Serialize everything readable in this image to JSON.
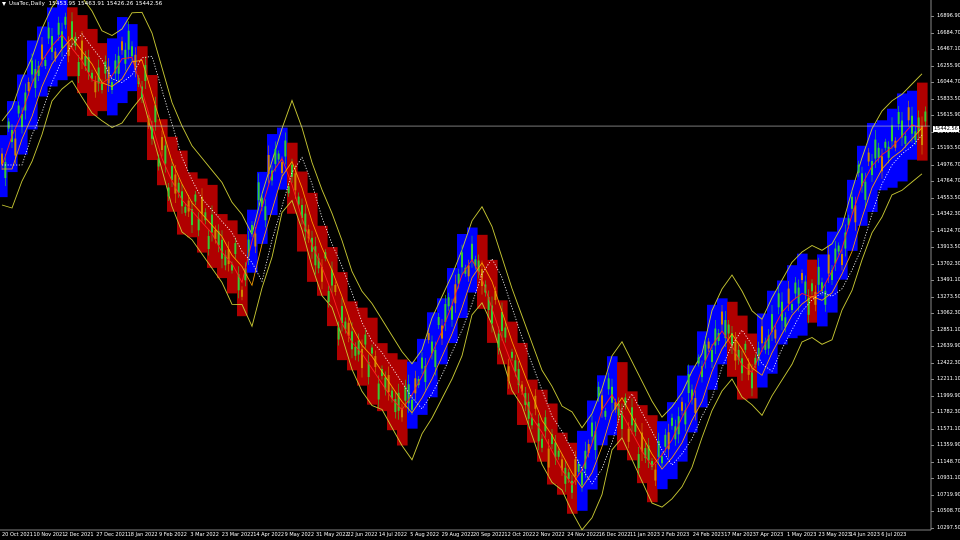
{
  "title": {
    "symbol": "UsaTec,Daily",
    "ohlc": "15453.95 15463.91 15426.26 15442.56"
  },
  "current_price_label": "15442.56",
  "price_axis": {
    "labels": [
      "16896.90",
      "16684.70",
      "16467.10",
      "16255.90",
      "16044.70",
      "15833.50",
      "15615.90",
      "15404.70",
      "15193.50",
      "14976.70",
      "14764.70",
      "14553.50",
      "14342.30",
      "14124.70",
      "13913.50",
      "13702.30",
      "13491.10",
      "13273.50",
      "13062.30",
      "12851.10",
      "12639.90",
      "12422.30",
      "12211.10",
      "11999.90",
      "11782.30",
      "11571.10",
      "11359.90",
      "11148.70",
      "10931.10",
      "10719.90",
      "10508.70",
      "10297.50"
    ]
  },
  "time_axis": {
    "labels": [
      "20 Oct 2021",
      "10 Nov 2021",
      "2 Dec 2021",
      "27 Dec 2021",
      "18 Jan 2022",
      "9 Feb 2022",
      "3 Mar 2022",
      "23 Mar 2022",
      "14 Apr 2022",
      "9 May 2022",
      "31 May 2022",
      "22 Jun 2022",
      "14 Jul 2022",
      "5 Aug 2022",
      "29 Aug 2022",
      "20 Sep 2022",
      "12 Oct 2022",
      "2 Nov 2022",
      "24 Nov 2022",
      "16 Dec 2022",
      "11 Jan 2023",
      "2 Feb 2023",
      "24 Feb 2023",
      "17 Mar 2023",
      "7 Apr 2023",
      "1 May 2023",
      "23 May 2023",
      "14 Jun 2023",
      "6 Jul 2023"
    ]
  },
  "chart_data": {
    "type": "line",
    "ylim": [
      10297.5,
      16896.9
    ],
    "current_price": 15442.56,
    "series": [
      {
        "values": [
          14950,
          15350,
          15650,
          16050,
          16350,
          16550,
          16700,
          16520,
          16350,
          16100,
          16050,
          16150,
          16380,
          16400,
          15950,
          15500,
          15050,
          14750,
          14500,
          14350,
          14200,
          14050,
          13800,
          13650,
          13400,
          13950,
          14400,
          14850,
          15050,
          14700,
          14250,
          13900,
          13600,
          13250,
          12850,
          12600,
          12450,
          12250,
          12050,
          11850,
          11700,
          11900,
          12150,
          12450,
          12750,
          13100,
          13500,
          13700,
          13450,
          13050,
          12650,
          12300,
          11950,
          11600,
          11400,
          11150,
          10900,
          10700,
          10900,
          11250,
          11700,
          11900,
          11650,
          11400,
          11150,
          10950,
          11100,
          11300,
          11600,
          11850,
          12250,
          12550,
          12750,
          12550,
          12300,
          12200,
          12500,
          12750,
          13000,
          13150,
          13250,
          13200,
          13300,
          13550,
          13850,
          14300,
          14700,
          14950,
          15100,
          15200,
          15350,
          15500,
          15450
        ]
      }
    ]
  },
  "colors": {
    "background": "#000000",
    "bull_band": "#0000ff",
    "bear_band": "#b00000",
    "bollinger": "#c8c832",
    "midline": "#ffffff",
    "ma_fast": "#ff2222",
    "ma_slow": "#ffa500",
    "candle_up": "#32cd32",
    "candle_down": "#cc8800",
    "axis_text": "#ffffff",
    "current_line": "#c0c0c0"
  }
}
